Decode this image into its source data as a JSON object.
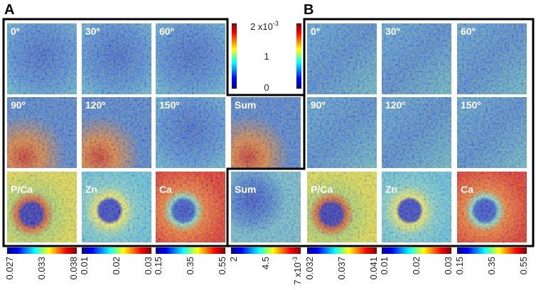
{
  "panel_labels": [
    "A",
    "B"
  ],
  "tiles": [
    "0º",
    "30º",
    "60º",
    "90º",
    "120º",
    "150º",
    "Sum",
    "P/Ca",
    "Zn",
    "Ca",
    "Sum",
    "0º",
    "30º",
    "60º",
    "90º",
    "120º",
    "150º",
    "P/Ca",
    "Zn",
    "Ca"
  ],
  "top_colorbar": {
    "max": "2 x10",
    "max_exponent": "-3",
    "mid": "1",
    "min": "0"
  },
  "bottom_colorbars": [
    {
      "ticks": [
        "0.027",
        "0.033",
        "0.038"
      ]
    },
    {
      "ticks": [
        "0.01",
        "0.02",
        "0.03"
      ]
    },
    {
      "ticks": [
        "0.15",
        "0.35",
        "0.55"
      ]
    },
    {
      "ticks": [
        "2",
        "4.5",
        "7 x10"
      ],
      "exponent": "-3"
    },
    {
      "ticks": [
        "0.032",
        "0.037",
        "0.041"
      ]
    },
    {
      "ticks": [
        "0.01",
        "0.02",
        "0.03"
      ]
    },
    {
      "ticks": [
        "0.15",
        "0.35",
        "0.55"
      ]
    }
  ]
}
